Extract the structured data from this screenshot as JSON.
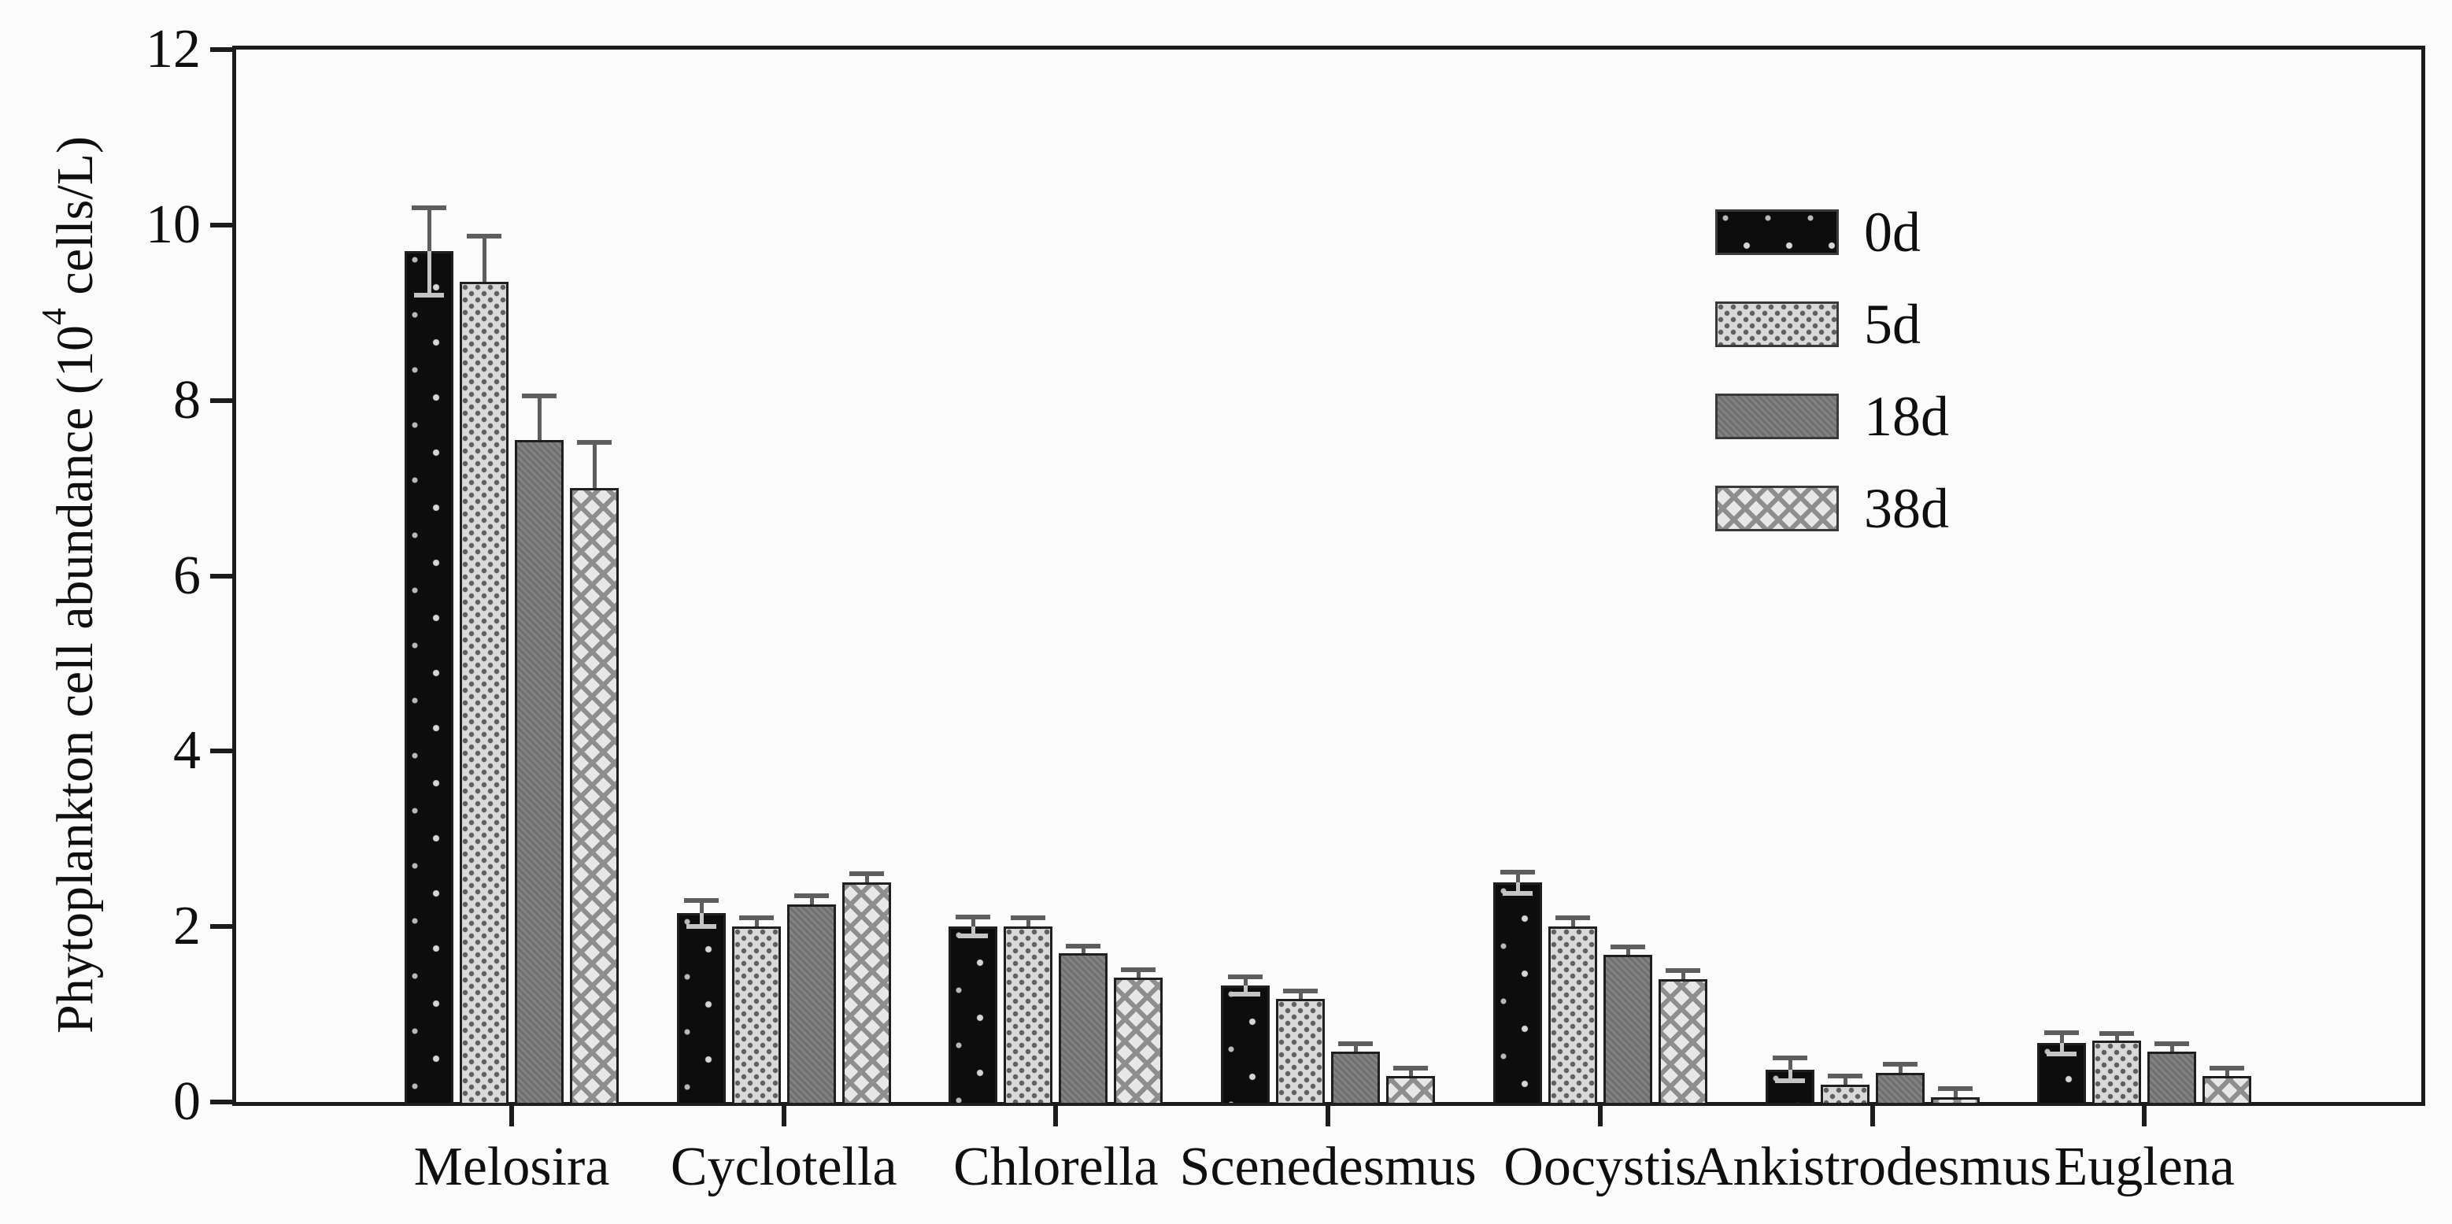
{
  "figure": {
    "background": "#fbfbfb",
    "axis_color": "#1c1c1c"
  },
  "chart_data": {
    "type": "bar",
    "title": "",
    "xlabel": "",
    "ylabel": "Phytoplankton cell abundance (10^4 cells/L)",
    "ylabel_parts": {
      "prefix": "Phytoplankton cell abundance (10",
      "sup": "4",
      "suffix": " cells/L)"
    },
    "ylim": [
      0,
      12
    ],
    "y_ticks": [
      0,
      2,
      4,
      6,
      8,
      10,
      12
    ],
    "grid": false,
    "legend_position": "upper-right-inside",
    "error_bars": "upward caps, symmetric caps visible on black series",
    "categories": [
      "Melosira",
      "Cyclotella",
      "Chlorella",
      "Scenedesmus",
      "Oocystis",
      "Ankistrodesmus",
      "Euglena"
    ],
    "series": [
      {
        "name": "0d",
        "pattern": "black-speckled",
        "fill": "#0d0d0d",
        "values": [
          9.7,
          2.15,
          2.0,
          1.33,
          2.5,
          0.37,
          0.67
        ],
        "errors": [
          0.5,
          0.15,
          0.11,
          0.1,
          0.12,
          0.13,
          0.12
        ]
      },
      {
        "name": "5d",
        "pattern": "light-gray-dotted",
        "fill": "#d9d9d9",
        "values": [
          9.35,
          2.0,
          2.0,
          1.18,
          2.0,
          0.2,
          0.7
        ],
        "errors": [
          0.52,
          0.1,
          0.1,
          0.09,
          0.1,
          0.1,
          0.08
        ]
      },
      {
        "name": "18d",
        "pattern": "solid-medium-gray",
        "fill": "#7c7c7c",
        "values": [
          7.55,
          2.25,
          1.7,
          0.57,
          1.68,
          0.33,
          0.57
        ],
        "errors": [
          0.5,
          0.1,
          0.08,
          0.09,
          0.09,
          0.1,
          0.09
        ]
      },
      {
        "name": "38d",
        "pattern": "diagonal-weave-hatch",
        "fill": "#e7e7e7",
        "values": [
          7.0,
          2.5,
          1.42,
          0.3,
          1.4,
          0.05,
          0.3
        ],
        "errors": [
          0.52,
          0.1,
          0.09,
          0.09,
          0.1,
          0.1,
          0.09
        ]
      }
    ]
  }
}
